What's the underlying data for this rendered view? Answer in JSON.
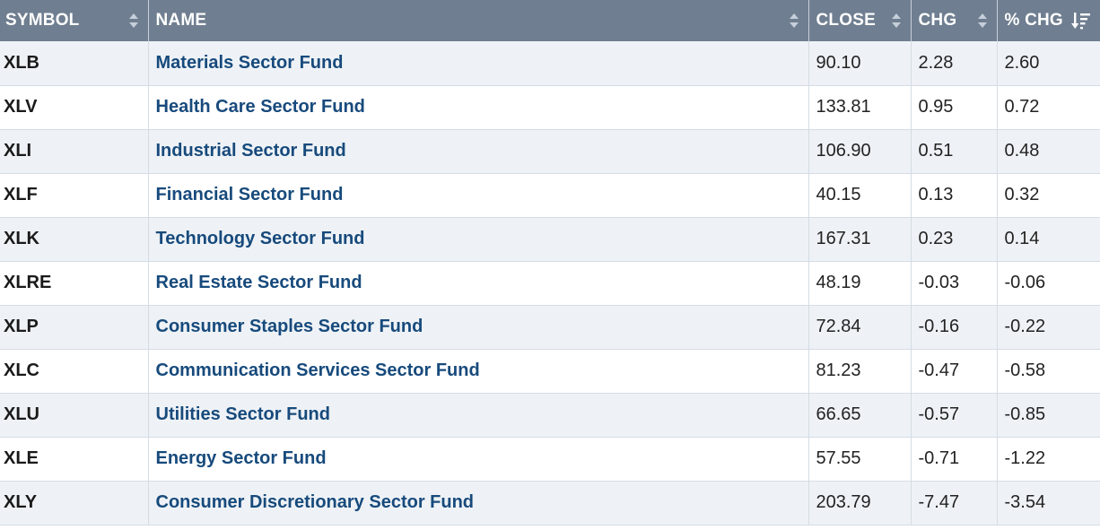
{
  "table": {
    "columns": [
      {
        "label": "SYMBOL"
      },
      {
        "label": "NAME"
      },
      {
        "label": "CLOSE"
      },
      {
        "label": "CHG"
      },
      {
        "label": "% CHG"
      }
    ],
    "sorted_column": "% CHG",
    "sort_direction": "descending",
    "rows": [
      {
        "symbol": "XLB",
        "name": "Materials Sector Fund",
        "close": "90.10",
        "chg": "2.28",
        "pct_chg": "2.60"
      },
      {
        "symbol": "XLV",
        "name": "Health Care Sector Fund",
        "close": "133.81",
        "chg": "0.95",
        "pct_chg": "0.72"
      },
      {
        "symbol": "XLI",
        "name": "Industrial Sector Fund",
        "close": "106.90",
        "chg": "0.51",
        "pct_chg": "0.48"
      },
      {
        "symbol": "XLF",
        "name": "Financial Sector Fund",
        "close": "40.15",
        "chg": "0.13",
        "pct_chg": "0.32"
      },
      {
        "symbol": "XLK",
        "name": "Technology Sector Fund",
        "close": "167.31",
        "chg": "0.23",
        "pct_chg": "0.14"
      },
      {
        "symbol": "XLRE",
        "name": "Real Estate Sector Fund",
        "close": "48.19",
        "chg": "-0.03",
        "pct_chg": "-0.06"
      },
      {
        "symbol": "XLP",
        "name": "Consumer Staples Sector Fund",
        "close": "72.84",
        "chg": "-0.16",
        "pct_chg": "-0.22"
      },
      {
        "symbol": "XLC",
        "name": "Communication Services Sector Fund",
        "close": "81.23",
        "chg": "-0.47",
        "pct_chg": "-0.58"
      },
      {
        "symbol": "XLU",
        "name": "Utilities Sector Fund",
        "close": "66.65",
        "chg": "-0.57",
        "pct_chg": "-0.85"
      },
      {
        "symbol": "XLE",
        "name": "Energy Sector Fund",
        "close": "57.55",
        "chg": "-0.71",
        "pct_chg": "-1.22"
      },
      {
        "symbol": "XLY",
        "name": "Consumer Discretionary Sector Fund",
        "close": "203.79",
        "chg": "-7.47",
        "pct_chg": "-3.54"
      }
    ]
  },
  "colors": {
    "header_bg": "#6f7e90",
    "link": "#174a7c",
    "stripe": "#eef2f6"
  },
  "icons": {
    "sortable": "sort-both-icon",
    "sorted_desc": "sort-descending-icon"
  }
}
